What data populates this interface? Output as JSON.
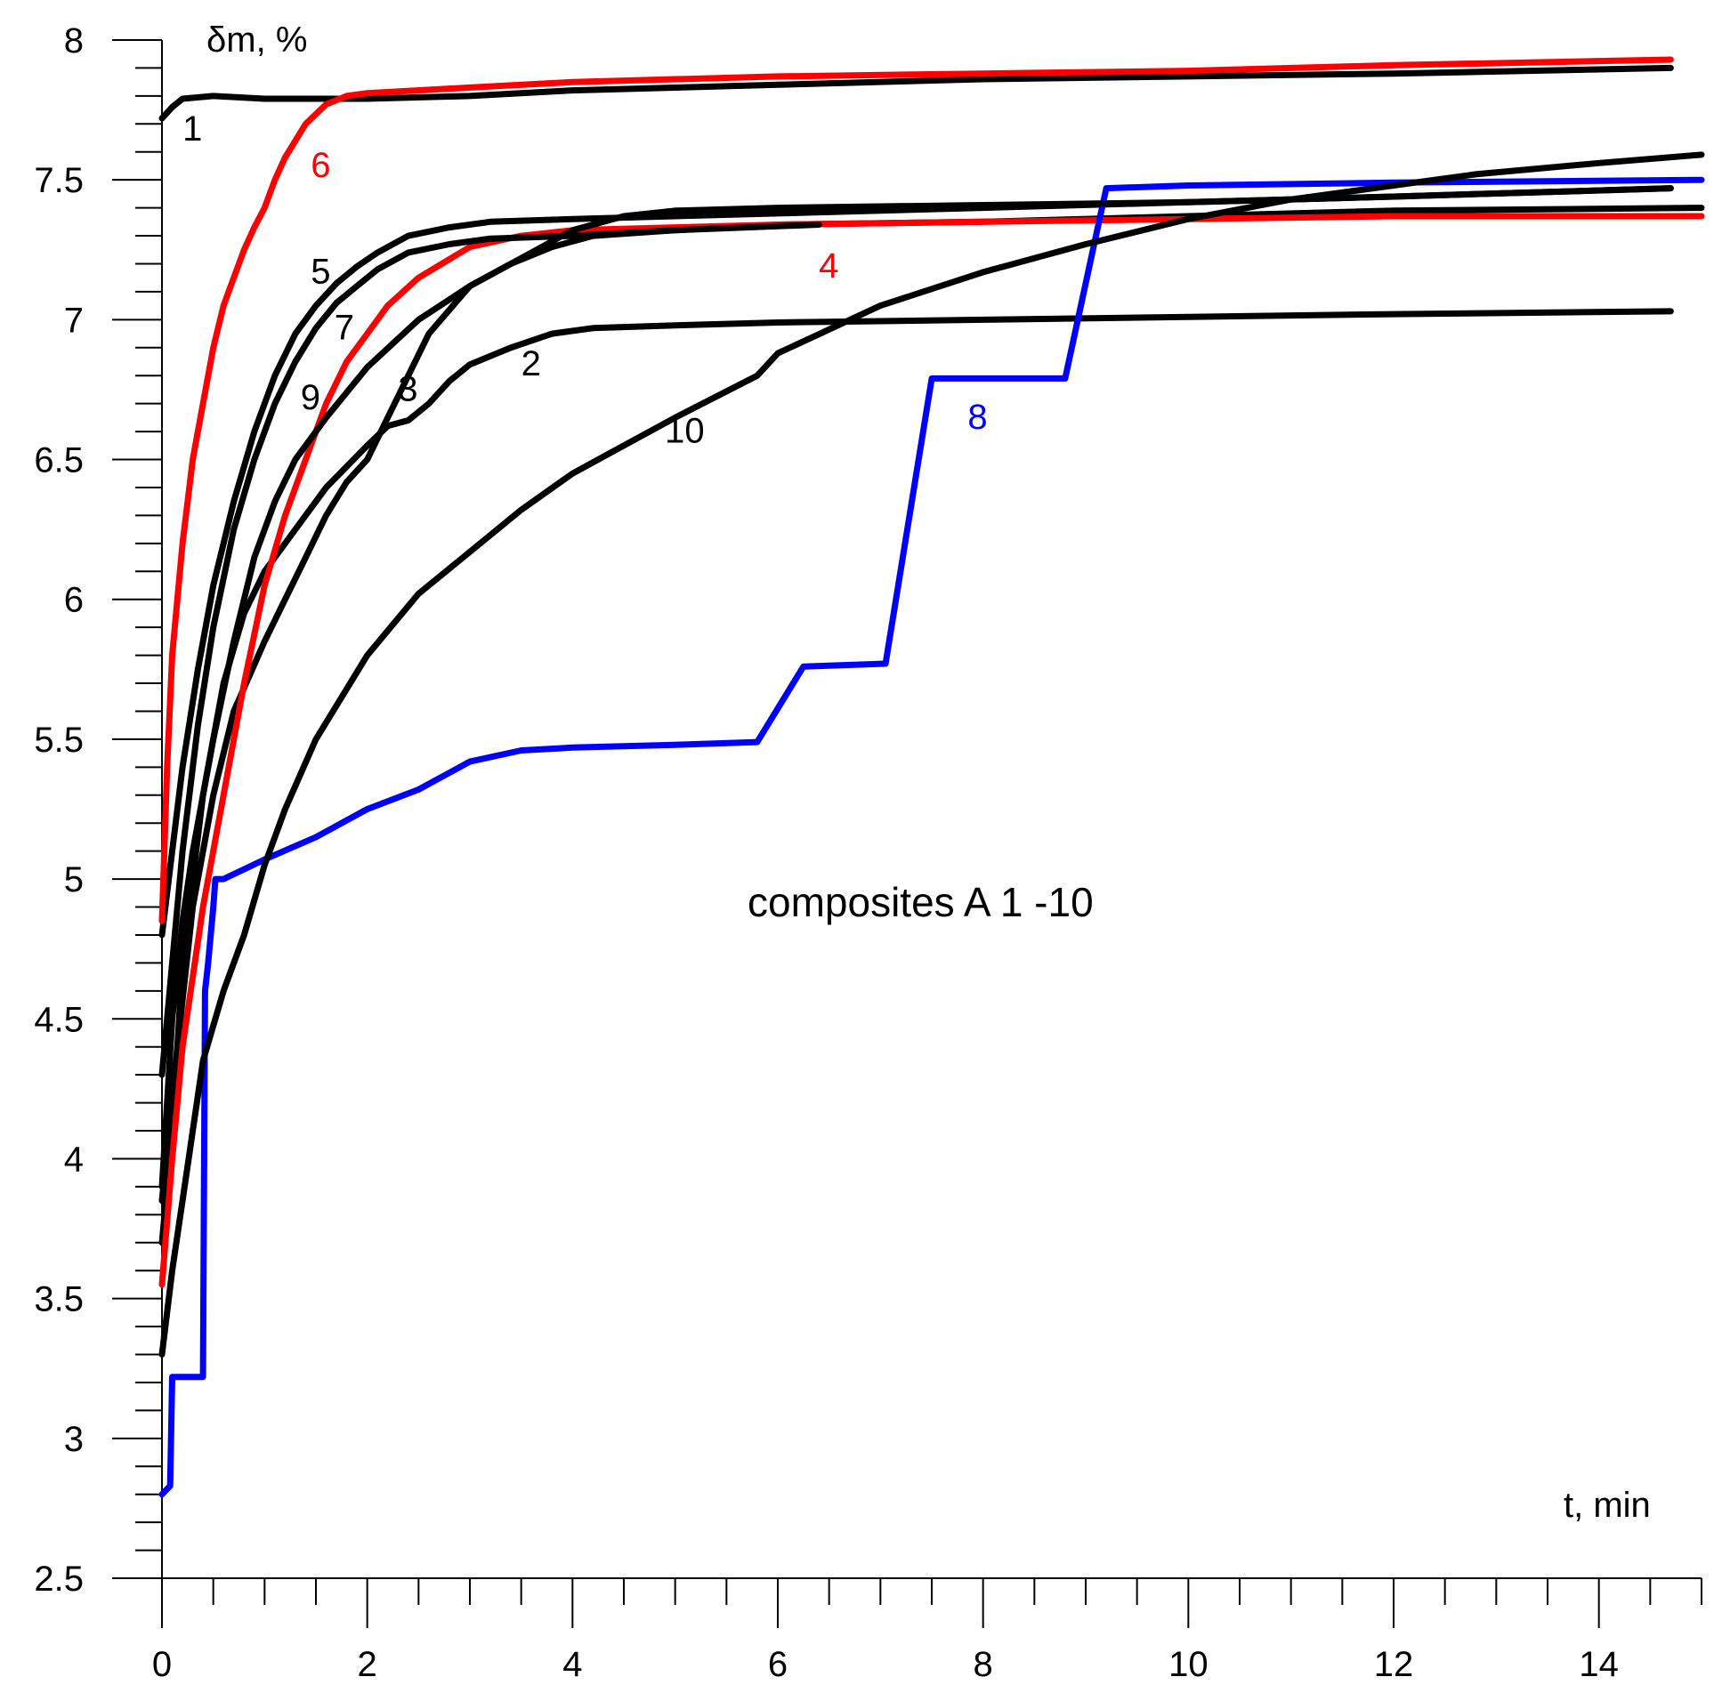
{
  "chart_data": {
    "type": "line",
    "title": "",
    "xlabel": "t, min",
    "ylabel": "δm, %",
    "xlim": [
      0,
      15
    ],
    "ylim": [
      2.5,
      8
    ],
    "x_ticks": [
      0,
      2,
      4,
      6,
      8,
      10,
      12,
      14
    ],
    "x_tick_labels": [
      "0",
      "2",
      "4",
      "6",
      "8",
      "10",
      "12",
      "14"
    ],
    "y_ticks": [
      2.5,
      3,
      3.5,
      4,
      4.5,
      5,
      5.5,
      6,
      6.5,
      7,
      7.5,
      8
    ],
    "y_tick_labels": [
      "2.5",
      "3",
      "3.5",
      "4",
      "4.5",
      "5",
      "5.5",
      "6",
      "6.5",
      "7",
      "7.5",
      "8"
    ],
    "grid": false,
    "annotation": "composites A 1 -10",
    "colors": {
      "black": "#000000",
      "red": "#ff0000",
      "blue": "#0000ff"
    },
    "series": [
      {
        "name": "1",
        "color": "#000000",
        "x": [
          0,
          0.1,
          0.2,
          0.5,
          1,
          2,
          3,
          4,
          6,
          8,
          10,
          12,
          14.7
        ],
        "y": [
          7.72,
          7.76,
          7.79,
          7.8,
          7.79,
          7.79,
          7.8,
          7.82,
          7.84,
          7.86,
          7.87,
          7.88,
          7.9
        ]
      },
      {
        "name": "2",
        "color": "#000000",
        "x": [
          0,
          0.1,
          0.2,
          0.4,
          0.6,
          0.8,
          1,
          1.3,
          1.6,
          2,
          2.2,
          2.4,
          2.6,
          2.8,
          3,
          3.4,
          3.8,
          4.2,
          5,
          6,
          8,
          10,
          12,
          14.7
        ],
        "y": [
          3.7,
          4.1,
          4.7,
          5.3,
          5.7,
          5.95,
          6.1,
          6.25,
          6.4,
          6.55,
          6.62,
          6.64,
          6.7,
          6.78,
          6.84,
          6.9,
          6.95,
          6.97,
          6.98,
          6.99,
          7.0,
          7.01,
          7.02,
          7.03
        ]
      },
      {
        "name": "3",
        "color": "#000000",
        "x": [
          0,
          0.15,
          0.3,
          0.5,
          0.7,
          1,
          1.2,
          1.4,
          1.6,
          1.8,
          2,
          2.2,
          2.6,
          3,
          3.4,
          3.8,
          4.2,
          5,
          6,
          8,
          10,
          12,
          15
        ],
        "y": [
          3.85,
          4.4,
          4.9,
          5.3,
          5.6,
          5.85,
          6.0,
          6.15,
          6.3,
          6.42,
          6.5,
          6.65,
          6.95,
          7.12,
          7.2,
          7.26,
          7.3,
          7.32,
          7.34,
          7.35,
          7.37,
          7.39,
          7.4
        ]
      },
      {
        "name": "4",
        "color": "#ff0000",
        "x": [
          0,
          0.1,
          0.2,
          0.4,
          0.6,
          0.8,
          1,
          1.2,
          1.4,
          1.6,
          1.8,
          2,
          2.2,
          2.5,
          3,
          3.5,
          4,
          5,
          6,
          8,
          10,
          12,
          15
        ],
        "y": [
          3.55,
          4.0,
          4.4,
          4.9,
          5.3,
          5.7,
          6.05,
          6.3,
          6.5,
          6.7,
          6.85,
          6.95,
          7.05,
          7.15,
          7.26,
          7.3,
          7.32,
          7.33,
          7.34,
          7.35,
          7.36,
          7.37,
          7.37
        ]
      },
      {
        "name": "5",
        "color": "#000000",
        "x": [
          0,
          0.1,
          0.2,
          0.35,
          0.5,
          0.7,
          0.9,
          1.1,
          1.3,
          1.5,
          1.7,
          1.9,
          2.1,
          2.4,
          2.8,
          3.2,
          4,
          5,
          6,
          8,
          10,
          12,
          14.7
        ],
        "y": [
          4.8,
          5.1,
          5.4,
          5.75,
          6.05,
          6.35,
          6.6,
          6.8,
          6.95,
          7.05,
          7.13,
          7.19,
          7.24,
          7.3,
          7.33,
          7.35,
          7.36,
          7.37,
          7.38,
          7.4,
          7.42,
          7.44,
          7.47
        ]
      },
      {
        "name": "6",
        "color": "#ff0000",
        "x": [
          0,
          0.05,
          0.1,
          0.2,
          0.3,
          0.4,
          0.5,
          0.6,
          0.7,
          0.8,
          0.9,
          1,
          1.1,
          1.2,
          1.4,
          1.6,
          1.8,
          2,
          3,
          4,
          6,
          8,
          10,
          12,
          14.7
        ],
        "y": [
          4.85,
          5.4,
          5.8,
          6.2,
          6.5,
          6.7,
          6.9,
          7.05,
          7.15,
          7.25,
          7.33,
          7.4,
          7.5,
          7.58,
          7.7,
          7.77,
          7.8,
          7.81,
          7.83,
          7.85,
          7.87,
          7.88,
          7.89,
          7.91,
          7.93
        ]
      },
      {
        "name": "7",
        "color": "#000000",
        "x": [
          0,
          0.1,
          0.2,
          0.35,
          0.5,
          0.7,
          0.9,
          1.1,
          1.3,
          1.5,
          1.7,
          1.9,
          2.1,
          2.4,
          2.8,
          3.2,
          4,
          5,
          6.4
        ],
        "y": [
          4.3,
          4.7,
          5.1,
          5.55,
          5.9,
          6.25,
          6.5,
          6.7,
          6.85,
          6.97,
          7.06,
          7.12,
          7.18,
          7.24,
          7.27,
          7.29,
          7.3,
          7.32,
          7.34
        ]
      },
      {
        "name": "8",
        "color": "#0000ff",
        "x": [
          0,
          0.08,
          0.1,
          0.4,
          0.42,
          0.45,
          0.5,
          0.52,
          0.6,
          1,
          1.5,
          2,
          2.5,
          3,
          3.5,
          4,
          5,
          5.8,
          6.25,
          7.05,
          7.5,
          8.8,
          9.2,
          10,
          12,
          15
        ],
        "y": [
          2.8,
          2.83,
          3.22,
          3.22,
          4.6,
          4.7,
          4.9,
          5.0,
          5.0,
          5.07,
          5.15,
          5.25,
          5.32,
          5.42,
          5.46,
          5.47,
          5.48,
          5.49,
          5.76,
          5.77,
          6.79,
          6.79,
          7.47,
          7.48,
          7.49,
          7.5
        ]
      },
      {
        "name": "9",
        "color": "#000000",
        "x": [
          0,
          0.1,
          0.2,
          0.3,
          0.5,
          0.7,
          0.9,
          1.1,
          1.3,
          1.6,
          2,
          2.5,
          3,
          3.5,
          4,
          4.5,
          5,
          6,
          8,
          10,
          12,
          14.7
        ],
        "y": [
          3.9,
          4.5,
          4.85,
          5.1,
          5.5,
          5.85,
          6.15,
          6.35,
          6.5,
          6.65,
          6.83,
          7.0,
          7.12,
          7.22,
          7.32,
          7.37,
          7.39,
          7.4,
          7.41,
          7.42,
          7.44,
          7.47
        ]
      },
      {
        "name": "10",
        "color": "#000000",
        "x": [
          0,
          0.1,
          0.2,
          0.3,
          0.4,
          0.6,
          0.8,
          1,
          1.2,
          1.5,
          2,
          2.5,
          3,
          3.5,
          4,
          4.5,
          5,
          5.8,
          6,
          7,
          8,
          9,
          10,
          11,
          12,
          12.8,
          14,
          15
        ],
        "y": [
          3.3,
          3.6,
          3.85,
          4.1,
          4.35,
          4.6,
          4.8,
          5.05,
          5.25,
          5.5,
          5.8,
          6.02,
          6.17,
          6.32,
          6.45,
          6.55,
          6.65,
          6.8,
          6.88,
          7.05,
          7.17,
          7.27,
          7.36,
          7.43,
          7.48,
          7.52,
          7.56,
          7.59
        ]
      }
    ]
  }
}
